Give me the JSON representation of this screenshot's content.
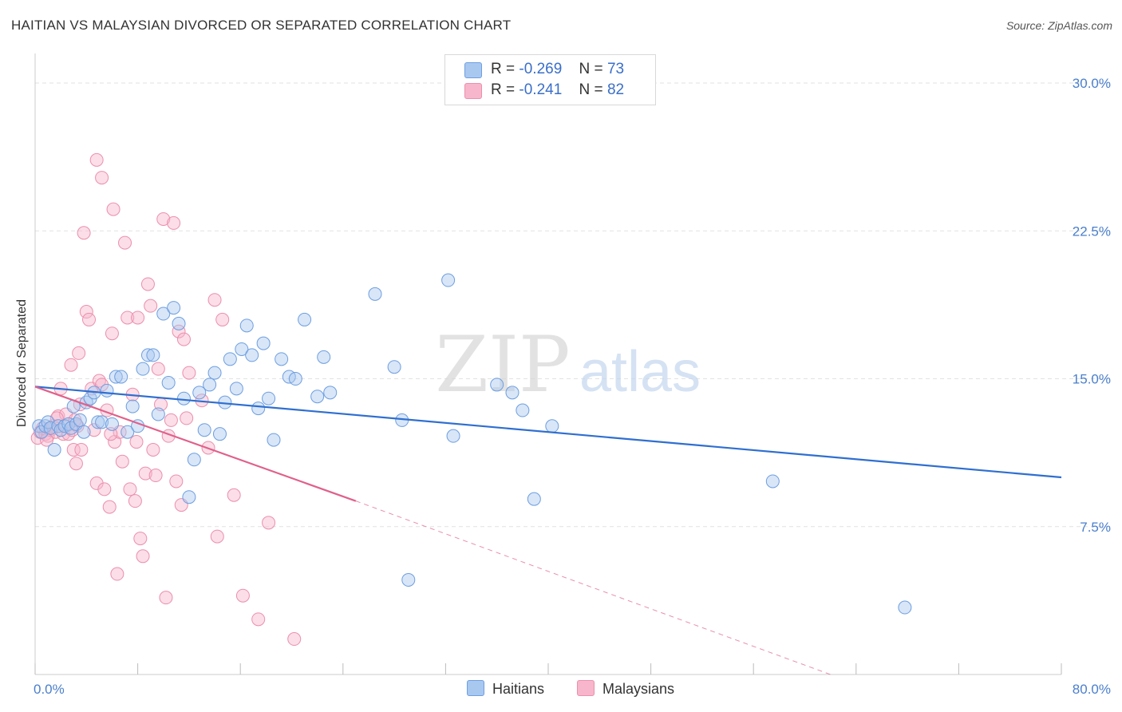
{
  "header": {
    "title": "HAITIAN VS MALAYSIAN DIVORCED OR SEPARATED CORRELATION CHART",
    "source": "Source: ZipAtlas.com"
  },
  "legend": {
    "rows": [
      {
        "r_label": "R =",
        "r_value": "-0.269",
        "n_label": "N =",
        "n_value": "73"
      },
      {
        "r_label": "R =",
        "r_value": "-0.241",
        "n_label": "N =",
        "n_value": "82"
      }
    ]
  },
  "bottom_legend": {
    "items": [
      "Haitians",
      "Malaysians"
    ]
  },
  "watermark": {
    "zip": "ZIP",
    "atlas": "atlas"
  },
  "colors": {
    "haitians_fill": "#a9c8f0",
    "haitians_stroke": "#6d9ee0",
    "haitians_line": "#2f6fd0",
    "malaysians_fill": "#f7b6cb",
    "malaysians_stroke": "#ec8fac",
    "malaysians_line": "#e0608a",
    "tick_text": "#4a7fcc",
    "grid": "#e2e2e2"
  },
  "chart_data": {
    "type": "scatter",
    "title": "HAITIAN VS MALAYSIAN DIVORCED OR SEPARATED CORRELATION CHART",
    "xlabel": "",
    "ylabel": "Divorced or Separated",
    "xlim": [
      0,
      80
    ],
    "ylim": [
      0,
      31.5
    ],
    "x_tick_labels": [
      "0.0%",
      "80.0%"
    ],
    "y_ticks": [
      7.5,
      15.0,
      22.5,
      30.0
    ],
    "y_tick_labels": [
      "7.5%",
      "15.0%",
      "22.5%",
      "30.0%"
    ],
    "grid": true,
    "legend_position": "top-center",
    "series": [
      {
        "name": "Haitians",
        "trend": {
          "x": [
            0,
            80
          ],
          "y": [
            14.6,
            10.0
          ]
        },
        "points": [
          [
            0.3,
            12.6
          ],
          [
            0.5,
            12.3
          ],
          [
            0.8,
            12.6
          ],
          [
            1.0,
            12.8
          ],
          [
            1.2,
            12.5
          ],
          [
            1.5,
            11.4
          ],
          [
            1.8,
            12.6
          ],
          [
            2.0,
            12.4
          ],
          [
            2.3,
            12.6
          ],
          [
            2.6,
            12.7
          ],
          [
            2.8,
            12.5
          ],
          [
            3.0,
            13.6
          ],
          [
            3.2,
            12.7
          ],
          [
            3.5,
            12.9
          ],
          [
            3.8,
            12.3
          ],
          [
            4.0,
            13.8
          ],
          [
            4.3,
            14.0
          ],
          [
            4.6,
            14.3
          ],
          [
            4.9,
            12.8
          ],
          [
            5.2,
            12.8
          ],
          [
            5.6,
            14.4
          ],
          [
            6.0,
            12.7
          ],
          [
            6.3,
            15.1
          ],
          [
            6.7,
            15.1
          ],
          [
            7.2,
            12.3
          ],
          [
            7.6,
            13.6
          ],
          [
            8.0,
            12.6
          ],
          [
            8.4,
            15.5
          ],
          [
            8.8,
            16.2
          ],
          [
            9.2,
            16.2
          ],
          [
            9.6,
            13.2
          ],
          [
            10.0,
            18.3
          ],
          [
            10.4,
            14.8
          ],
          [
            10.8,
            18.6
          ],
          [
            11.2,
            17.8
          ],
          [
            11.6,
            14.0
          ],
          [
            12.0,
            9.0
          ],
          [
            12.4,
            10.9
          ],
          [
            12.8,
            14.3
          ],
          [
            13.2,
            12.4
          ],
          [
            13.6,
            14.7
          ],
          [
            14.0,
            15.3
          ],
          [
            14.4,
            12.2
          ],
          [
            14.8,
            13.8
          ],
          [
            15.2,
            16.0
          ],
          [
            15.7,
            14.5
          ],
          [
            16.1,
            16.5
          ],
          [
            16.5,
            17.7
          ],
          [
            16.9,
            16.2
          ],
          [
            17.4,
            13.5
          ],
          [
            17.8,
            16.8
          ],
          [
            18.2,
            14.0
          ],
          [
            18.6,
            11.9
          ],
          [
            19.2,
            16.0
          ],
          [
            19.8,
            15.1
          ],
          [
            20.3,
            15.0
          ],
          [
            21.0,
            18.0
          ],
          [
            22.0,
            14.1
          ],
          [
            22.5,
            16.1
          ],
          [
            23.0,
            14.3
          ],
          [
            26.5,
            19.3
          ],
          [
            28.0,
            15.6
          ],
          [
            28.6,
            12.9
          ],
          [
            29.1,
            4.8
          ],
          [
            32.2,
            20.0
          ],
          [
            32.6,
            12.1
          ],
          [
            36.0,
            14.7
          ],
          [
            37.2,
            14.3
          ],
          [
            38.0,
            13.4
          ],
          [
            38.9,
            8.9
          ],
          [
            40.3,
            12.6
          ],
          [
            57.5,
            9.8
          ],
          [
            67.8,
            3.4
          ]
        ]
      },
      {
        "name": "Malaysians",
        "trend": {
          "x": [
            0,
            25
          ],
          "y": [
            14.6,
            8.8
          ]
        },
        "trend_dashed": {
          "x": [
            25,
            62
          ],
          "y": [
            8.8,
            0.0
          ]
        },
        "points": [
          [
            0.2,
            12.0
          ],
          [
            0.4,
            12.3
          ],
          [
            0.6,
            12.5
          ],
          [
            0.8,
            12.2
          ],
          [
            1.0,
            12.1
          ],
          [
            1.2,
            12.4
          ],
          [
            1.4,
            12.6
          ],
          [
            1.6,
            12.3
          ],
          [
            1.8,
            13.1
          ],
          [
            2.0,
            14.5
          ],
          [
            2.2,
            12.2
          ],
          [
            2.4,
            12.6
          ],
          [
            2.6,
            12.2
          ],
          [
            2.8,
            15.7
          ],
          [
            3.0,
            11.4
          ],
          [
            3.2,
            10.7
          ],
          [
            3.3,
            12.6
          ],
          [
            3.4,
            16.3
          ],
          [
            3.5,
            13.7
          ],
          [
            3.6,
            11.4
          ],
          [
            3.8,
            22.4
          ],
          [
            4.0,
            18.4
          ],
          [
            4.2,
            18.0
          ],
          [
            4.4,
            14.5
          ],
          [
            4.6,
            12.4
          ],
          [
            4.8,
            9.7
          ],
          [
            5.0,
            14.9
          ],
          [
            5.2,
            14.7
          ],
          [
            5.4,
            9.4
          ],
          [
            5.6,
            13.4
          ],
          [
            5.8,
            8.5
          ],
          [
            6.0,
            17.3
          ],
          [
            6.2,
            11.8
          ],
          [
            6.4,
            5.1
          ],
          [
            6.6,
            12.3
          ],
          [
            6.8,
            10.8
          ],
          [
            7.0,
            21.9
          ],
          [
            7.2,
            18.1
          ],
          [
            7.4,
            9.4
          ],
          [
            7.6,
            14.2
          ],
          [
            7.8,
            8.8
          ],
          [
            8.0,
            18.1
          ],
          [
            8.2,
            6.9
          ],
          [
            8.4,
            6.0
          ],
          [
            8.6,
            10.2
          ],
          [
            8.8,
            19.8
          ],
          [
            9.0,
            18.7
          ],
          [
            9.2,
            11.4
          ],
          [
            9.4,
            10.1
          ],
          [
            9.6,
            15.5
          ],
          [
            9.8,
            13.7
          ],
          [
            10.0,
            23.1
          ],
          [
            10.2,
            3.9
          ],
          [
            10.4,
            12.1
          ],
          [
            10.6,
            12.9
          ],
          [
            10.8,
            22.9
          ],
          [
            11.0,
            9.8
          ],
          [
            11.2,
            17.4
          ],
          [
            11.4,
            8.6
          ],
          [
            11.6,
            17.0
          ],
          [
            11.8,
            13.0
          ],
          [
            12.0,
            15.3
          ],
          [
            13.0,
            13.9
          ],
          [
            13.5,
            11.5
          ],
          [
            14.0,
            19.0
          ],
          [
            14.2,
            7.0
          ],
          [
            14.6,
            18.0
          ],
          [
            15.5,
            9.1
          ],
          [
            16.2,
            4.0
          ],
          [
            17.4,
            2.8
          ],
          [
            18.2,
            7.7
          ],
          [
            20.2,
            1.8
          ],
          [
            4.8,
            26.1
          ],
          [
            5.2,
            25.2
          ],
          [
            6.1,
            23.6
          ],
          [
            2.9,
            12.4
          ],
          [
            2.4,
            13.2
          ],
          [
            1.7,
            13.0
          ],
          [
            0.9,
            11.9
          ],
          [
            3.1,
            12.9
          ],
          [
            5.9,
            12.2
          ],
          [
            7.9,
            11.8
          ]
        ]
      }
    ]
  }
}
